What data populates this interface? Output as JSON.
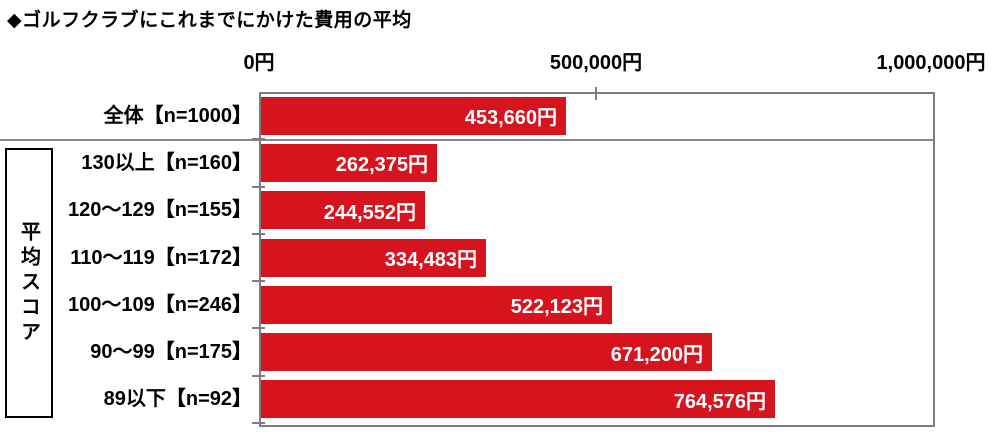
{
  "title": "◆ゴルフクラブにこれまでにかけた費用の平均",
  "group_label": "平均スコア",
  "colors": {
    "bar": "#d7141e",
    "bar_value_text": "#ffffff",
    "plot_border": "#7d7d7d",
    "separator": "#8a8a8a",
    "sidebar_border": "#000000",
    "text": "#000000"
  },
  "axis": {
    "tick_labels": [
      "0円",
      "500,000円",
      "1,000,000円"
    ],
    "min": 0,
    "max": 1000000
  },
  "rows": [
    {
      "label": "全体【n=1000】",
      "value": 453660,
      "display": "453,660円"
    },
    {
      "label": "130以上【n=160】",
      "value": 262375,
      "display": "262,375円"
    },
    {
      "label": "120〜129【n=155】",
      "value": 244552,
      "display": "244,552円"
    },
    {
      "label": "110〜119【n=172】",
      "value": 334483,
      "display": "334,483円"
    },
    {
      "label": "100〜109【n=246】",
      "value": 522123,
      "display": "522,123円"
    },
    {
      "label": "90〜99【n=175】",
      "value": 671200,
      "display": "671,200円"
    },
    {
      "label": "89以下【n=92】",
      "value": 764576,
      "display": "764,576円"
    }
  ],
  "chart_data": {
    "type": "bar",
    "orientation": "horizontal",
    "title": "◆ゴルフクラブにこれまでにかけた費用の平均",
    "categories": [
      "全体【n=1000】",
      "130以上【n=160】",
      "120〜129【n=155】",
      "110〜119【n=172】",
      "100〜109【n=246】",
      "90〜99【n=175】",
      "89以下【n=92】"
    ],
    "values": [
      453660,
      262375,
      244552,
      334483,
      522123,
      671200,
      764576
    ],
    "value_labels": [
      "453,660円",
      "262,375円",
      "244,552円",
      "334,483円",
      "522,123円",
      "671,200円",
      "764,576円"
    ],
    "group_axis_label": "平均スコア",
    "xlabel": "",
    "ylabel": "",
    "xlim": [
      0,
      1000000
    ],
    "x_tick_values": [
      0,
      500000,
      1000000
    ],
    "x_tick_labels": [
      "0円",
      "500,000円",
      "1,000,000円"
    ],
    "grid": false,
    "legend": false,
    "bar_color": "#d7141e"
  }
}
